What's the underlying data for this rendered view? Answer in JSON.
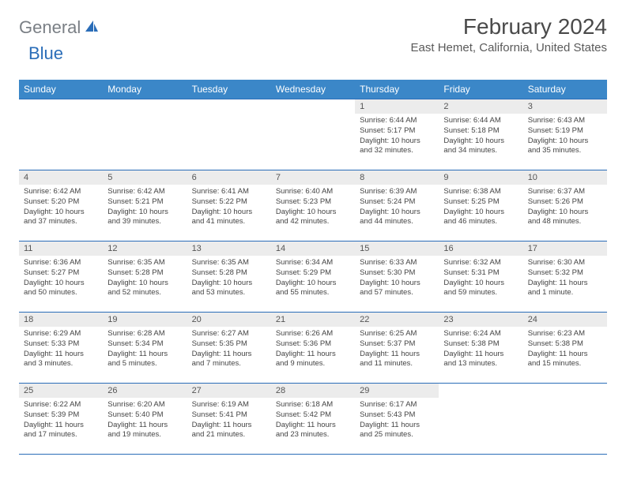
{
  "logo": {
    "gray": "General",
    "blue": "Blue"
  },
  "title": "February 2024",
  "location": "East Hemet, California, United States",
  "colors": {
    "header_bg": "#3b87c8",
    "header_text": "#ffffff",
    "border": "#2a6db8",
    "daynum_bg": "#ececec",
    "logo_gray": "#7a7f85",
    "logo_blue": "#2a6db8"
  },
  "day_headers": [
    "Sunday",
    "Monday",
    "Tuesday",
    "Wednesday",
    "Thursday",
    "Friday",
    "Saturday"
  ],
  "weeks": [
    [
      null,
      null,
      null,
      null,
      {
        "n": "1",
        "sr": "6:44 AM",
        "ss": "5:17 PM",
        "dl": "10 hours and 32 minutes."
      },
      {
        "n": "2",
        "sr": "6:44 AM",
        "ss": "5:18 PM",
        "dl": "10 hours and 34 minutes."
      },
      {
        "n": "3",
        "sr": "6:43 AM",
        "ss": "5:19 PM",
        "dl": "10 hours and 35 minutes."
      }
    ],
    [
      {
        "n": "4",
        "sr": "6:42 AM",
        "ss": "5:20 PM",
        "dl": "10 hours and 37 minutes."
      },
      {
        "n": "5",
        "sr": "6:42 AM",
        "ss": "5:21 PM",
        "dl": "10 hours and 39 minutes."
      },
      {
        "n": "6",
        "sr": "6:41 AM",
        "ss": "5:22 PM",
        "dl": "10 hours and 41 minutes."
      },
      {
        "n": "7",
        "sr": "6:40 AM",
        "ss": "5:23 PM",
        "dl": "10 hours and 42 minutes."
      },
      {
        "n": "8",
        "sr": "6:39 AM",
        "ss": "5:24 PM",
        "dl": "10 hours and 44 minutes."
      },
      {
        "n": "9",
        "sr": "6:38 AM",
        "ss": "5:25 PM",
        "dl": "10 hours and 46 minutes."
      },
      {
        "n": "10",
        "sr": "6:37 AM",
        "ss": "5:26 PM",
        "dl": "10 hours and 48 minutes."
      }
    ],
    [
      {
        "n": "11",
        "sr": "6:36 AM",
        "ss": "5:27 PM",
        "dl": "10 hours and 50 minutes."
      },
      {
        "n": "12",
        "sr": "6:35 AM",
        "ss": "5:28 PM",
        "dl": "10 hours and 52 minutes."
      },
      {
        "n": "13",
        "sr": "6:35 AM",
        "ss": "5:28 PM",
        "dl": "10 hours and 53 minutes."
      },
      {
        "n": "14",
        "sr": "6:34 AM",
        "ss": "5:29 PM",
        "dl": "10 hours and 55 minutes."
      },
      {
        "n": "15",
        "sr": "6:33 AM",
        "ss": "5:30 PM",
        "dl": "10 hours and 57 minutes."
      },
      {
        "n": "16",
        "sr": "6:32 AM",
        "ss": "5:31 PM",
        "dl": "10 hours and 59 minutes."
      },
      {
        "n": "17",
        "sr": "6:30 AM",
        "ss": "5:32 PM",
        "dl": "11 hours and 1 minute."
      }
    ],
    [
      {
        "n": "18",
        "sr": "6:29 AM",
        "ss": "5:33 PM",
        "dl": "11 hours and 3 minutes."
      },
      {
        "n": "19",
        "sr": "6:28 AM",
        "ss": "5:34 PM",
        "dl": "11 hours and 5 minutes."
      },
      {
        "n": "20",
        "sr": "6:27 AM",
        "ss": "5:35 PM",
        "dl": "11 hours and 7 minutes."
      },
      {
        "n": "21",
        "sr": "6:26 AM",
        "ss": "5:36 PM",
        "dl": "11 hours and 9 minutes."
      },
      {
        "n": "22",
        "sr": "6:25 AM",
        "ss": "5:37 PM",
        "dl": "11 hours and 11 minutes."
      },
      {
        "n": "23",
        "sr": "6:24 AM",
        "ss": "5:38 PM",
        "dl": "11 hours and 13 minutes."
      },
      {
        "n": "24",
        "sr": "6:23 AM",
        "ss": "5:38 PM",
        "dl": "11 hours and 15 minutes."
      }
    ],
    [
      {
        "n": "25",
        "sr": "6:22 AM",
        "ss": "5:39 PM",
        "dl": "11 hours and 17 minutes."
      },
      {
        "n": "26",
        "sr": "6:20 AM",
        "ss": "5:40 PM",
        "dl": "11 hours and 19 minutes."
      },
      {
        "n": "27",
        "sr": "6:19 AM",
        "ss": "5:41 PM",
        "dl": "11 hours and 21 minutes."
      },
      {
        "n": "28",
        "sr": "6:18 AM",
        "ss": "5:42 PM",
        "dl": "11 hours and 23 minutes."
      },
      {
        "n": "29",
        "sr": "6:17 AM",
        "ss": "5:43 PM",
        "dl": "11 hours and 25 minutes."
      },
      null,
      null
    ]
  ],
  "labels": {
    "sunrise": "Sunrise:",
    "sunset": "Sunset:",
    "daylight": "Daylight:"
  }
}
